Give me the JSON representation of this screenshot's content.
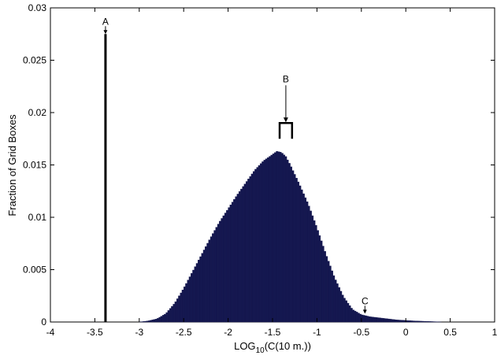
{
  "chart_data": {
    "type": "bar",
    "title": "",
    "xlabel": {
      "prefix": "LOG",
      "subscript": "10",
      "suffix": "(C(10 m.))"
    },
    "ylabel": "Fraction of Grid Boxes",
    "xlim": [
      -4,
      1
    ],
    "ylim": [
      0,
      0.03
    ],
    "xticks": [
      "-4",
      "-3.5",
      "-3",
      "-2.5",
      "-2",
      "-1.5",
      "-1",
      "-0.5",
      "0",
      "0.5",
      "1"
    ],
    "yticks": [
      "0",
      "0.005",
      "0.01",
      "0.015",
      "0.02",
      "0.025",
      "0.03"
    ],
    "grid": false,
    "bar_color": "#14174f",
    "spike": {
      "x": -3.38,
      "value": 0.0275
    },
    "histogram": {
      "bin_width": 0.02,
      "x": [
        -3.0,
        -2.9,
        -2.8,
        -2.7,
        -2.6,
        -2.5,
        -2.4,
        -2.3,
        -2.2,
        -2.1,
        -2.0,
        -1.9,
        -1.8,
        -1.7,
        -1.6,
        -1.5,
        -1.45,
        -1.4,
        -1.35,
        -1.3,
        -1.2,
        -1.1,
        -1.0,
        -0.9,
        -0.8,
        -0.7,
        -0.6,
        -0.5,
        -0.4,
        -0.3,
        -0.2,
        -0.1,
        0.0,
        0.1,
        0.2,
        0.3,
        0.4
      ],
      "values": [
        0.0,
        0.0001,
        0.0003,
        0.0008,
        0.0018,
        0.0032,
        0.0048,
        0.0064,
        0.008,
        0.0095,
        0.0108,
        0.0121,
        0.0133,
        0.0145,
        0.0154,
        0.016,
        0.0163,
        0.0162,
        0.0158,
        0.015,
        0.0132,
        0.0113,
        0.009,
        0.0065,
        0.0042,
        0.0024,
        0.0012,
        0.0007,
        0.0005,
        0.0004,
        0.0003,
        0.0002,
        0.00015,
        0.0001,
        7e-05,
        4e-05,
        0.0
      ]
    },
    "annotations": [
      {
        "label": "A",
        "x": -3.38,
        "y": 0.0275,
        "type": "arrow"
      },
      {
        "label": "B",
        "x": -1.35,
        "y": 0.0193,
        "type": "arrow-bracket",
        "bracket": [
          -1.42,
          -1.28
        ]
      },
      {
        "label": "C",
        "x": -0.46,
        "y": 0.0008,
        "type": "arrow"
      }
    ]
  }
}
